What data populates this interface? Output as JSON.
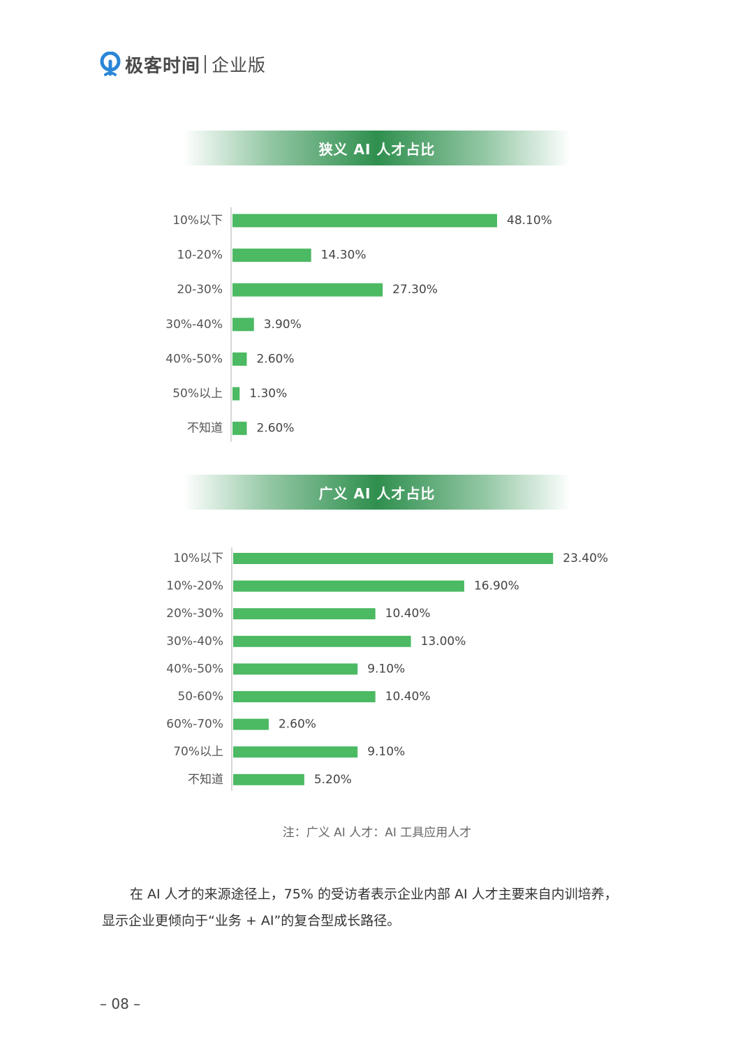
{
  "brand": {
    "name": "极客时间",
    "sub": "企业版",
    "logo_icon": "brand-logo-icon"
  },
  "colors": {
    "bar": "#4cb963",
    "banner": "#2f8f4e"
  },
  "chart_data": [
    {
      "type": "bar",
      "orientation": "horizontal",
      "title": "狭义 AI 人才占比",
      "categories": [
        "10%以下",
        "10-20%",
        "20-30%",
        "30%-40%",
        "40%-50%",
        "50%以上",
        "不知道"
      ],
      "values": [
        48.1,
        14.3,
        27.3,
        3.9,
        2.6,
        1.3,
        2.6
      ],
      "value_labels": [
        "48.10%",
        "14.30%",
        "27.30%",
        "3.90%",
        "2.60%",
        "1.30%",
        "2.60%"
      ],
      "xlim": [
        0,
        50
      ],
      "grid": false,
      "legend": "none"
    },
    {
      "type": "bar",
      "orientation": "horizontal",
      "title": "广义 AI 人才占比",
      "categories": [
        "10%以下",
        "10%-20%",
        "20%-30%",
        "30%-40%",
        "40%-50%",
        "50-60%",
        "60%-70%",
        "70%以上",
        "不知道"
      ],
      "values": [
        23.4,
        16.9,
        10.4,
        13.0,
        9.1,
        10.4,
        2.6,
        9.1,
        5.2
      ],
      "value_labels": [
        "23.40%",
        "16.90%",
        "10.40%",
        "13.00%",
        "9.10%",
        "10.40%",
        "2.60%",
        "9.10%",
        "5.20%"
      ],
      "xlim": [
        0,
        24
      ],
      "grid": false,
      "legend": "none"
    }
  ],
  "note": "注：广义 AI 人才：AI 工具应用人才",
  "paragraph": {
    "line1": "在 AI 人才的来源途径上，75% 的受访者表示企业内部 AI 人才主要来自内训培养，",
    "line2": "显示企业更倾向于“业务 + AI”的复合型成长路径。"
  },
  "page_number": "– 08 –"
}
